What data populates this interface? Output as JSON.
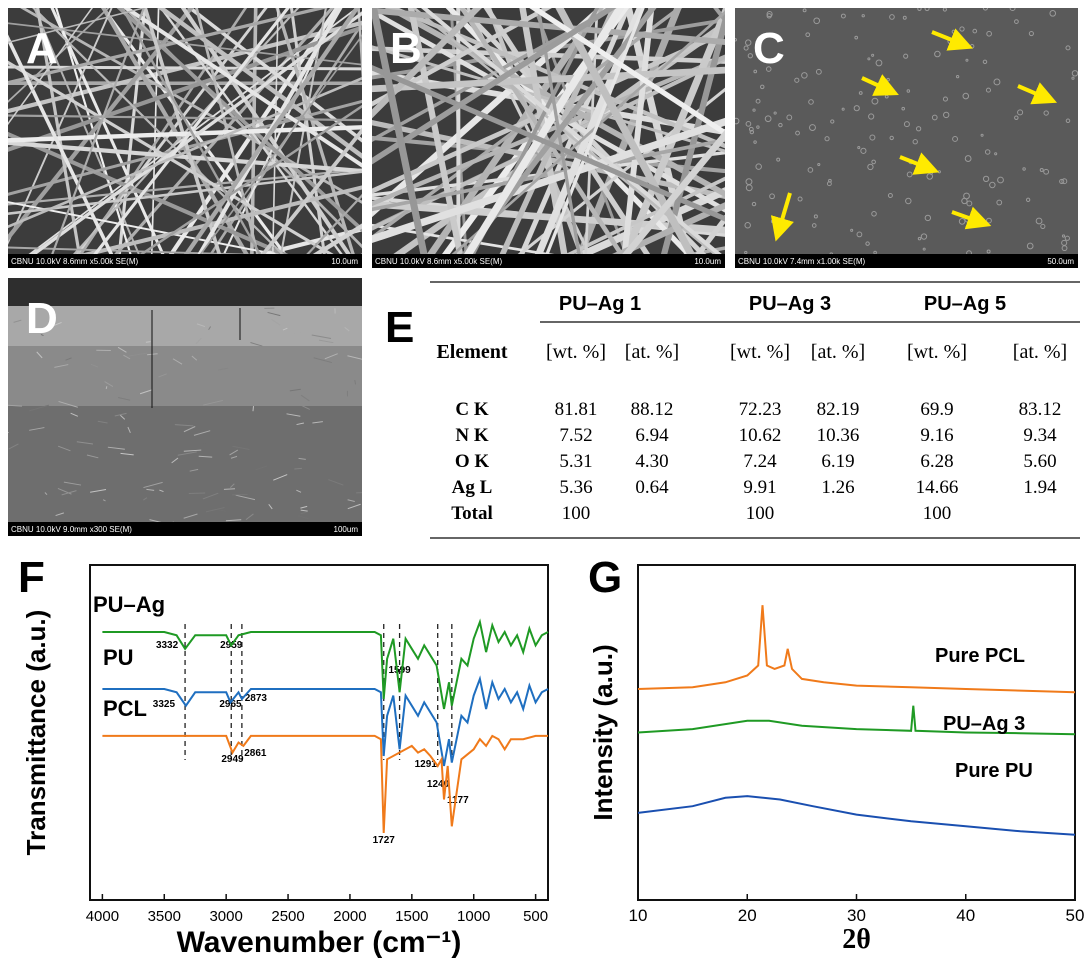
{
  "sem": [
    {
      "label": "A",
      "info": "CBNU 10.0kV 8.6mm x5.00k SE(M)",
      "scale": "10.0um"
    },
    {
      "label": "B",
      "info": "CBNU 10.0kV 8.6mm x5.00k SE(M)",
      "scale": "10.0um"
    },
    {
      "label": "C",
      "info": "CBNU 10.0kV 7.4mm x1.00k SE(M)",
      "scale": "50.0um"
    },
    {
      "label": "D",
      "info": "CBNU 10.0kV 9.0mm x300 SE(M)",
      "scale": "100um"
    }
  ],
  "table": {
    "label": "E",
    "groups": [
      "PU–Ag 1",
      "PU–Ag 3",
      "PU–Ag 5"
    ],
    "header": [
      "Element",
      "[wt. %]",
      "[at. %]",
      "[wt. %]",
      "[at. %]",
      "[wt. %]",
      "[at. %]"
    ],
    "rows": [
      [
        "C K",
        "81.81",
        "88.12",
        "72.23",
        "82.19",
        "69.9",
        "83.12"
      ],
      [
        "N K",
        "7.52",
        "6.94",
        "10.62",
        "10.36",
        "9.16",
        "9.34"
      ],
      [
        "O K",
        "5.31",
        "4.30",
        "7.24",
        "6.19",
        "6.28",
        "5.60"
      ],
      [
        "Ag L",
        "5.36",
        "0.64",
        "9.91",
        "1.26",
        "14.66",
        "1.94"
      ]
    ],
    "total": {
      "label": "Total",
      "values": [
        "100",
        "100",
        "100"
      ]
    }
  },
  "chart_data": [
    {
      "type": "line",
      "label": "F",
      "xlabel": "Wavenumber (cm⁻¹)",
      "ylabel": "Transmittance (a.u.)",
      "xlim": [
        4100,
        400
      ],
      "xticks": [
        4000,
        3500,
        3000,
        2500,
        2000,
        1500,
        1000,
        500
      ],
      "peaks": [
        3332,
        2959,
        3325,
        2965,
        2873,
        2949,
        2861,
        1599,
        1727,
        1291,
        1240,
        1177
      ],
      "series": [
        {
          "name": "PU–Ag",
          "color": "#1f9a24",
          "x": [
            4000,
            3500,
            3400,
            3332,
            3250,
            3000,
            2959,
            2900,
            2800,
            1800,
            1750,
            1727,
            1700,
            1650,
            1599,
            1550,
            1500,
            1450,
            1400,
            1300,
            1240,
            1200,
            1177,
            1100,
            1050,
            1000,
            950,
            900,
            850,
            800,
            750,
            700,
            650,
            600,
            550,
            500,
            450,
            400
          ],
          "values": [
            80,
            80,
            79,
            75,
            79,
            79,
            76,
            79,
            80,
            80,
            79,
            60,
            72,
            78,
            62,
            78,
            75,
            72,
            76,
            70,
            57,
            65,
            58,
            72,
            70,
            78,
            83,
            74,
            82,
            77,
            80,
            76,
            79,
            74,
            81,
            76,
            79,
            80
          ]
        },
        {
          "name": "PU",
          "color": "#1f6fc0",
          "x": [
            4000,
            3500,
            3400,
            3325,
            3250,
            3000,
            2965,
            2900,
            2873,
            2800,
            1800,
            1750,
            1727,
            1700,
            1650,
            1599,
            1550,
            1500,
            1450,
            1400,
            1300,
            1240,
            1200,
            1177,
            1100,
            1050,
            1000,
            950,
            900,
            850,
            800,
            750,
            700,
            650,
            600,
            550,
            500,
            450,
            400
          ],
          "values": [
            63,
            63,
            62,
            58,
            62,
            62,
            59,
            62,
            60,
            63,
            63,
            62,
            43,
            55,
            61,
            45,
            61,
            58,
            55,
            59,
            53,
            40,
            48,
            41,
            55,
            53,
            61,
            66,
            57,
            65,
            60,
            63,
            59,
            62,
            57,
            64,
            59,
            62,
            63
          ]
        },
        {
          "name": "PCL",
          "color": "#f07a1a",
          "x": [
            4000,
            3500,
            3000,
            2949,
            2900,
            2861,
            2800,
            1800,
            1750,
            1727,
            1700,
            1500,
            1450,
            1400,
            1350,
            1291,
            1260,
            1240,
            1210,
            1177,
            1100,
            1000,
            950,
            900,
            850,
            800,
            750,
            700,
            600,
            500,
            400
          ],
          "values": [
            49,
            49,
            49,
            44,
            47,
            46,
            49,
            49,
            48,
            20,
            42,
            46,
            44,
            45,
            43,
            40,
            42,
            30,
            40,
            22,
            42,
            45,
            48,
            46,
            49,
            48,
            45,
            48,
            48,
            49,
            49
          ]
        }
      ]
    },
    {
      "type": "line",
      "label": "G",
      "xlabel": "2θ",
      "ylabel": "Intensity (a.u.)",
      "xlim": [
        10,
        50
      ],
      "xticks": [
        10,
        20,
        30,
        40,
        50
      ],
      "series": [
        {
          "name": "Pure PCL",
          "color": "#f07a1a",
          "x": [
            10,
            15,
            18,
            20,
            21,
            21.4,
            21.8,
            22.5,
            23.4,
            23.7,
            24.1,
            25,
            27,
            30,
            35,
            40,
            45,
            50
          ],
          "values": [
            63,
            63.5,
            65,
            67,
            70,
            88,
            70,
            69,
            70,
            75,
            69,
            66,
            65,
            64,
            63.5,
            63,
            62.5,
            62
          ]
        },
        {
          "name": "PU–Ag 3",
          "color": "#1f9a24",
          "x": [
            10,
            15,
            20,
            22,
            25,
            30,
            35,
            35.2,
            35.4,
            40,
            45,
            50
          ],
          "values": [
            50,
            51,
            53.5,
            53.5,
            52,
            51,
            50.5,
            58,
            50.5,
            50,
            49.8,
            49.5
          ]
        },
        {
          "name": "Pure PU",
          "color": "#1a4fb0",
          "x": [
            10,
            15,
            18,
            20,
            23,
            26,
            30,
            35,
            40,
            45,
            50
          ],
          "values": [
            26,
            28,
            30.5,
            31,
            30,
            28,
            25.5,
            23.5,
            22,
            20.5,
            19.5
          ]
        }
      ]
    }
  ]
}
